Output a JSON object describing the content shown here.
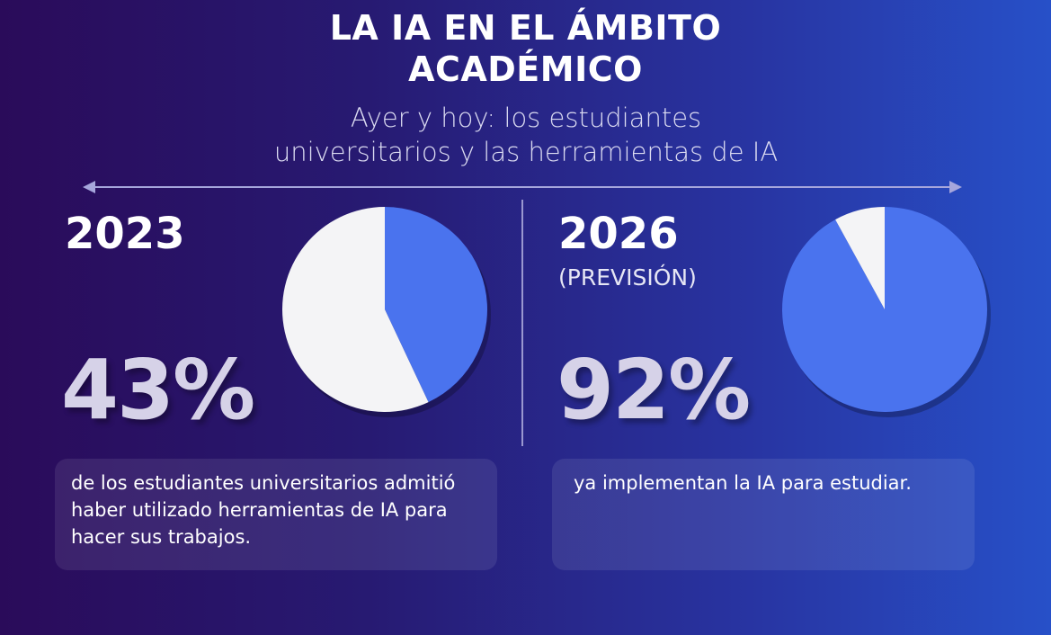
{
  "header": {
    "title_line1": "LA IA EN EL ÁMBITO",
    "title_line2": "ACADÉMICO",
    "subtitle_line1": "Ayer y hoy: los estudiantes",
    "subtitle_line2": "universitarios y las herramientas de IA"
  },
  "left": {
    "year": "2023",
    "percent": "43%",
    "description": "de los estudiantes universitarios admitió haber utilizado herramientas de IA para hacer sus trabajos."
  },
  "right": {
    "year": "2026",
    "note": "(PREVISIÓN)",
    "percent": "92%",
    "description": "ya implementan la IA para estudiar."
  },
  "chart_data": [
    {
      "type": "pie",
      "title": "2023",
      "values": [
        43,
        57
      ],
      "colors": [
        "#4a73ee",
        "#f4f4f6"
      ]
    },
    {
      "type": "pie",
      "title": "2026 (PREVISIÓN)",
      "values": [
        92,
        8
      ],
      "colors": [
        "#4a73ee",
        "#f4f4f6"
      ]
    }
  ]
}
